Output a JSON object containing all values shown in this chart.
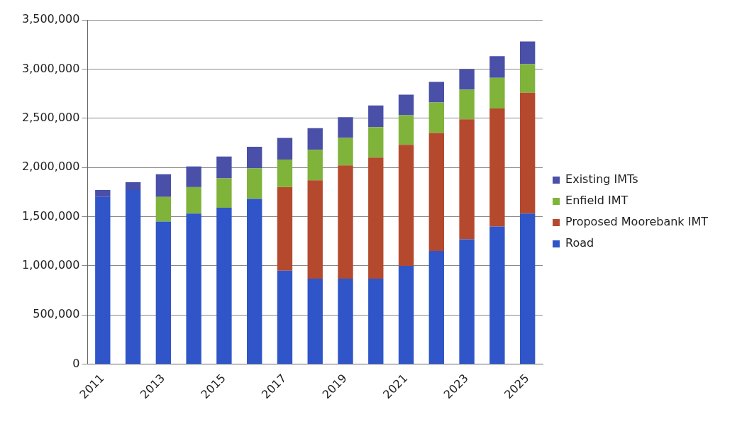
{
  "chart_data": {
    "type": "bar",
    "stacked": true,
    "categories": [
      "2011",
      null,
      "2013",
      null,
      "2015",
      null,
      "2017",
      null,
      "2019",
      null,
      "2021",
      null,
      "2023",
      null,
      "2025"
    ],
    "series": [
      {
        "name": "Road",
        "color": "#2f55c8",
        "values": [
          1700000,
          1770000,
          1450000,
          1530000,
          1590000,
          1680000,
          950000,
          870000,
          870000,
          870000,
          1000000,
          1150000,
          1270000,
          1400000,
          1530000
        ]
      },
      {
        "name": "Proposed Moorebank IMT",
        "color": "#b5492e",
        "values": [
          null,
          null,
          null,
          null,
          null,
          null,
          850000,
          1000000,
          1150000,
          1230000,
          1230000,
          1200000,
          1220000,
          1200000,
          1230000
        ]
      },
      {
        "name": "Enfield IMT",
        "color": "#7fb33a",
        "values": [
          null,
          null,
          250000,
          270000,
          300000,
          310000,
          280000,
          310000,
          280000,
          310000,
          300000,
          310000,
          300000,
          310000,
          290000
        ]
      },
      {
        "name": "Existing IMTs",
        "color": "#4a4fa8",
        "values": [
          70000,
          80000,
          230000,
          210000,
          220000,
          220000,
          220000,
          220000,
          210000,
          220000,
          210000,
          210000,
          210000,
          220000,
          230000
        ]
      }
    ],
    "ylim": [
      0,
      3500000
    ],
    "yticks": [
      {
        "value": 0,
        "label": "0"
      },
      {
        "value": 500000,
        "label": "500,000"
      },
      {
        "value": 1000000,
        "label": "1,000,000"
      },
      {
        "value": 1500000,
        "label": "1,500,000"
      },
      {
        "value": 2000000,
        "label": "2,000,000"
      },
      {
        "value": 2500000,
        "label": "2,500,000"
      },
      {
        "value": 3000000,
        "label": "3,000,000"
      },
      {
        "value": 3500000,
        "label": "3,500,000"
      }
    ],
    "grid": "y",
    "legend": "right"
  }
}
